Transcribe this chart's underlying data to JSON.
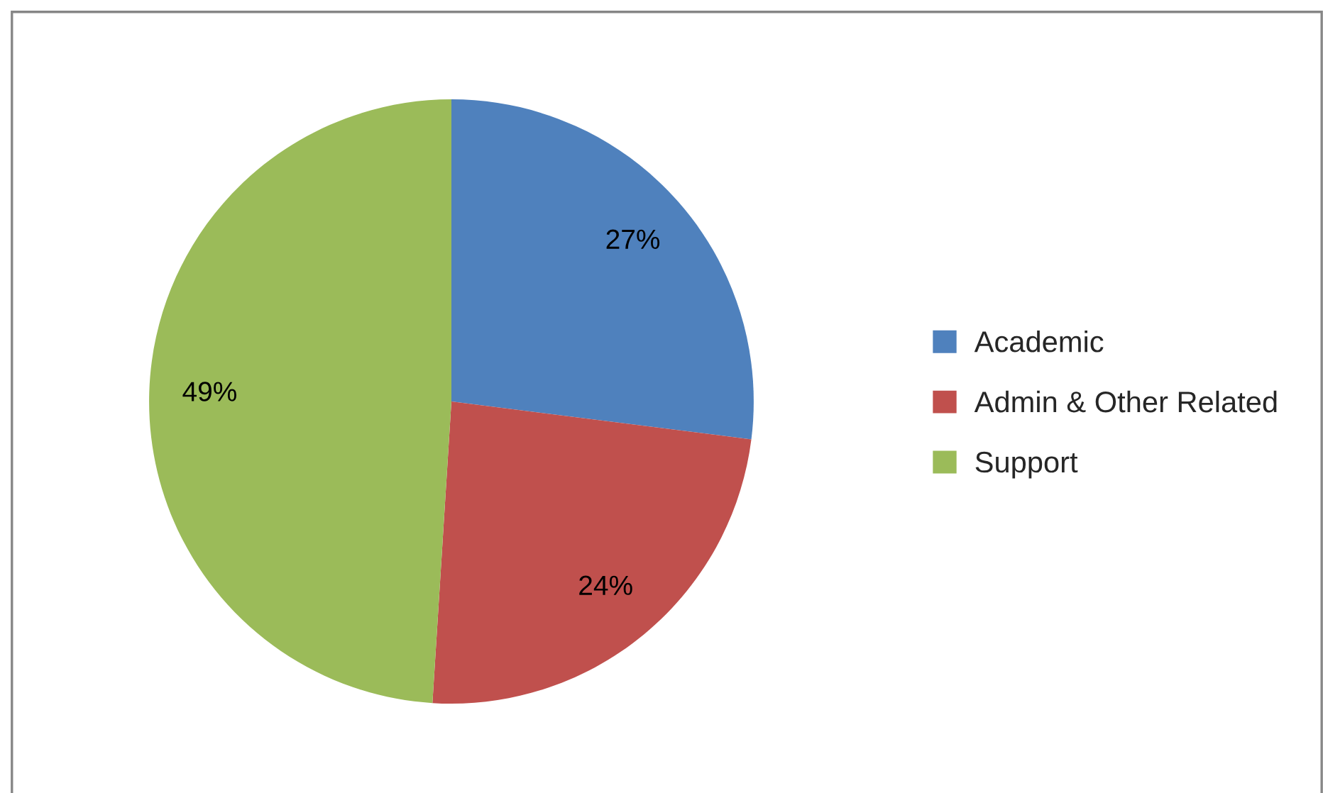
{
  "chart_data": {
    "type": "pie",
    "categories": [
      "Academic",
      "Admin & Other Related",
      "Support"
    ],
    "values": [
      27,
      24,
      49
    ],
    "colors": [
      "#4f81bd",
      "#c0504d",
      "#9bbb59"
    ],
    "value_labels": [
      "27%",
      "24%",
      "49%"
    ],
    "legend": "right"
  }
}
